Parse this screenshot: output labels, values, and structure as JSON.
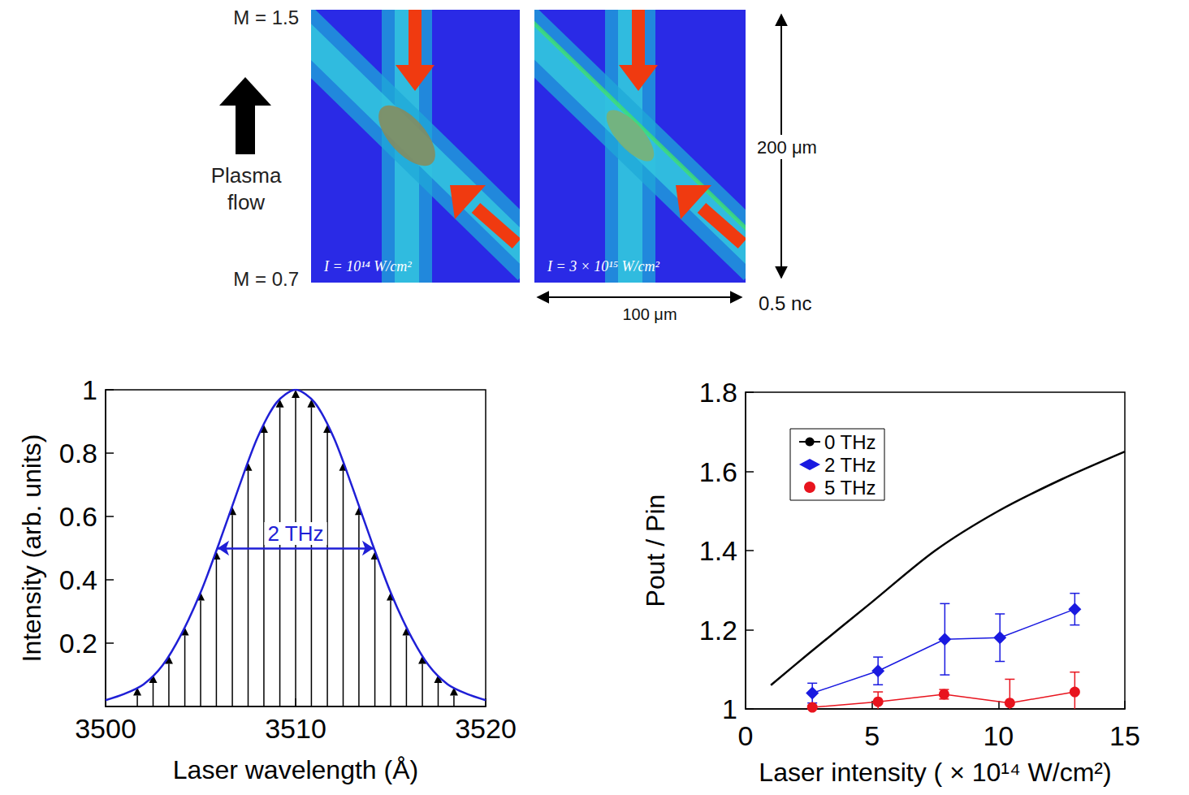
{
  "diagram": {
    "mach_top": "M = 1.5",
    "mach_bottom": "M = 0.7",
    "flow_label": "Plasma flow",
    "panels": [
      {
        "label": "I = 10¹⁴ W/cm²"
      },
      {
        "label": "I = 3 × 10¹⁵ W/cm²"
      }
    ],
    "height_label": "200 μm",
    "width_label": "100 μm",
    "density_label": "0.5 nc"
  },
  "chart_data": [
    {
      "type": "line",
      "x_label": "Laser wavelength (Å)",
      "y_label": "Intensity (arb. units)",
      "xlim": [
        3500,
        3520
      ],
      "xticks": [
        3500,
        3510,
        3520
      ],
      "ylim": [
        0,
        1
      ],
      "yticks": [
        0.2,
        0.4,
        0.6,
        0.8,
        1
      ],
      "grid": false,
      "series": [
        {
          "type": "line",
          "color": "#1f1fd6",
          "x": [
            3500,
            3501,
            3502,
            3503,
            3504,
            3505,
            3506,
            3507,
            3508,
            3509,
            3510,
            3511,
            3512,
            3513,
            3514,
            3515,
            3516,
            3517,
            3518,
            3519,
            3520
          ],
          "values": [
            0.02,
            0.04,
            0.07,
            0.13,
            0.23,
            0.36,
            0.52,
            0.69,
            0.85,
            0.96,
            1,
            0.96,
            0.85,
            0.69,
            0.52,
            0.36,
            0.23,
            0.13,
            0.07,
            0.04,
            0.02
          ]
        },
        {
          "type": "stem",
          "marker": "arrow",
          "color": "#000000",
          "x": [
            3501.67,
            3502.5,
            3503.33,
            3504.17,
            3505,
            3505.83,
            3506.67,
            3507.5,
            3508.33,
            3509.17,
            3510,
            3510.83,
            3511.67,
            3512.5,
            3513.33,
            3514.17,
            3515,
            3515.83,
            3516.67,
            3517.5,
            3518.33
          ],
          "values": [
            0.06,
            0.1,
            0.16,
            0.25,
            0.36,
            0.49,
            0.63,
            0.77,
            0.89,
            0.97,
            1,
            0.97,
            0.89,
            0.77,
            0.63,
            0.49,
            0.36,
            0.25,
            0.16,
            0.1,
            0.06
          ]
        }
      ],
      "annotations": [
        {
          "text": "2 THz",
          "x": [
            3505.9,
            3514.1
          ],
          "y": 0.5,
          "color": "#1f1fd6"
        }
      ]
    },
    {
      "type": "line",
      "x_label": "Laser intensity ( × 10¹⁴ W/cm²)",
      "y_label": "Pout / Pin",
      "xlim": [
        0,
        15
      ],
      "xticks": [
        0,
        5,
        10,
        15
      ],
      "ylim": [
        1,
        1.8
      ],
      "yticks": [
        1,
        1.2,
        1.4,
        1.6,
        1.8
      ],
      "grid": false,
      "legend": "upper left",
      "series": [
        {
          "name": "0 THz",
          "color": "#000000",
          "x": [
            1,
            2.5,
            5,
            7.5,
            10,
            12.5,
            15
          ],
          "values": [
            1.06,
            1.14,
            1.27,
            1.4,
            1.5,
            1.58,
            1.65
          ]
        },
        {
          "name": "2 THz",
          "color": "#1a1ae0",
          "marker": "diamond",
          "x": [
            2.64,
            5.24,
            7.88,
            10.06,
            13.02
          ],
          "values": [
            1.04,
            1.096,
            1.176,
            1.18,
            1.252
          ],
          "errors": [
            0.025,
            0.035,
            0.09,
            0.06,
            0.04
          ]
        },
        {
          "name": "5 THz",
          "color": "#e8141e",
          "marker": "circle",
          "x": [
            2.64,
            5.24,
            7.85,
            10.45,
            13.02
          ],
          "values": [
            1.004,
            1.018,
            1.037,
            1.015,
            1.043
          ],
          "errors": [
            0.005,
            0.025,
            0.012,
            0.06,
            0.05
          ]
        }
      ]
    }
  ]
}
